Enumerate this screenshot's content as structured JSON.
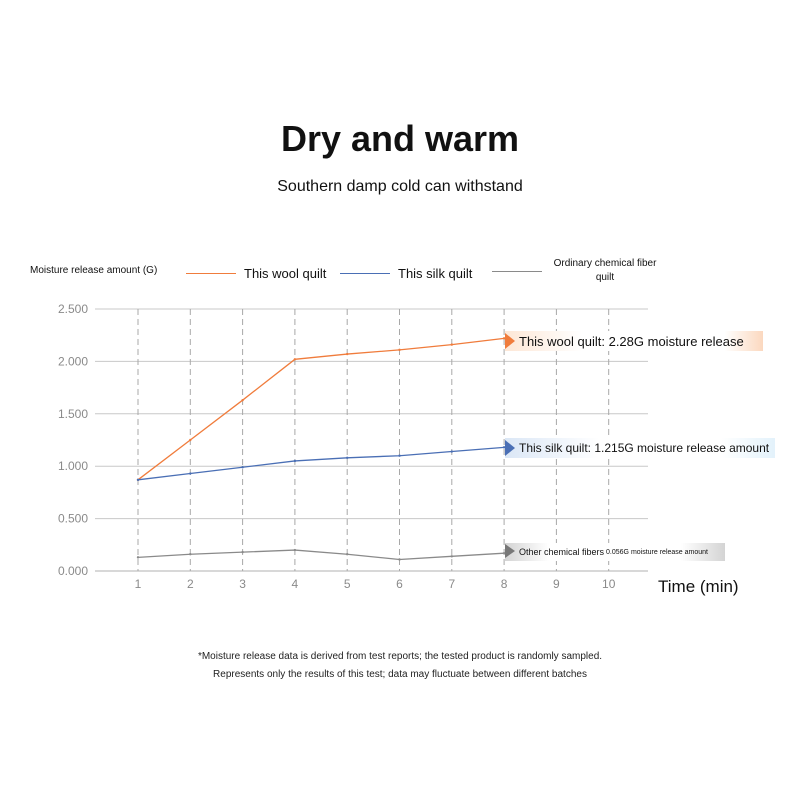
{
  "header": {
    "title": "Dry and warm",
    "subtitle": "Southern damp cold can withstand"
  },
  "chart_data": {
    "type": "line",
    "ylabel": "Moisture release amount (G)",
    "xlabel": "Time (min)",
    "x": [
      1,
      2,
      3,
      4,
      5,
      6,
      7,
      8,
      9,
      10
    ],
    "x_tick_labels": [
      "1",
      "2",
      "3",
      "4",
      "5",
      "6",
      "7",
      "8",
      "9",
      "10"
    ],
    "ylim": [
      0,
      2.5
    ],
    "y_ticks": [
      0,
      0.5,
      1.0,
      1.5,
      2.0,
      2.5
    ],
    "y_tick_labels": [
      "0.000",
      "0.500",
      "1.000",
      "1.500",
      "2.000",
      "2.500"
    ],
    "grid": "vertical dashed, horizontal solid",
    "legend_position": "top",
    "series": [
      {
        "name": "This wool quilt",
        "color": "#f07c3c",
        "x": [
          1,
          2,
          3,
          4,
          5,
          6,
          7,
          8
        ],
        "values": [
          0.87,
          1.25,
          1.63,
          2.02,
          2.07,
          2.11,
          2.16,
          2.22
        ]
      },
      {
        "name": "This silk quilt",
        "color": "#4a6fb5",
        "x": [
          1,
          2,
          3,
          4,
          5,
          6,
          7,
          8
        ],
        "values": [
          0.87,
          0.93,
          0.99,
          1.05,
          1.08,
          1.1,
          1.14,
          1.18
        ]
      },
      {
        "name": "Ordinary chemical fiber quilt",
        "color": "#8a8a8a",
        "x": [
          1,
          2,
          3,
          4,
          5,
          6,
          7,
          8
        ],
        "values": [
          0.13,
          0.16,
          0.18,
          0.2,
          0.16,
          0.11,
          0.14,
          0.17
        ]
      }
    ],
    "legend": {
      "wool": "This wool quilt",
      "silk": "This silk quilt",
      "chem_line1": "Ordinary chemical fiber",
      "chem_line2": "quilt"
    },
    "annotations": {
      "wool": "This wool quilt: 2.28G moisture release",
      "silk": "This silk quilt: 1.215G moisture release amount",
      "chem_a": "Other chemical fibers",
      "chem_b": "0.056G moisture release amount"
    }
  },
  "footnote": {
    "line1": "*Moisture release data is derived from test reports; the tested product is randomly sampled.",
    "line2": "Represents only the results of this test; data may fluctuate between different batches"
  },
  "colors": {
    "wool": "#f07c3c",
    "silk": "#4a6fb5",
    "chem": "#8a8a8a",
    "grid": "#c8c8c8",
    "tick_text": "#8a8a8a"
  }
}
